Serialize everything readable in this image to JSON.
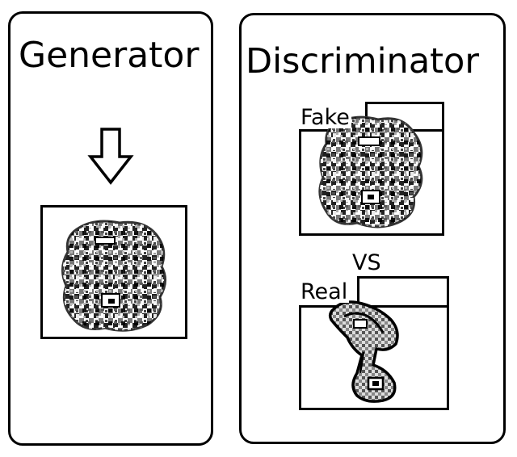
{
  "generator": {
    "title": "Generator"
  },
  "discriminator": {
    "title": "Discriminator",
    "fake_label": "Fake",
    "vs_label": "VS",
    "real_label": "Real"
  }
}
